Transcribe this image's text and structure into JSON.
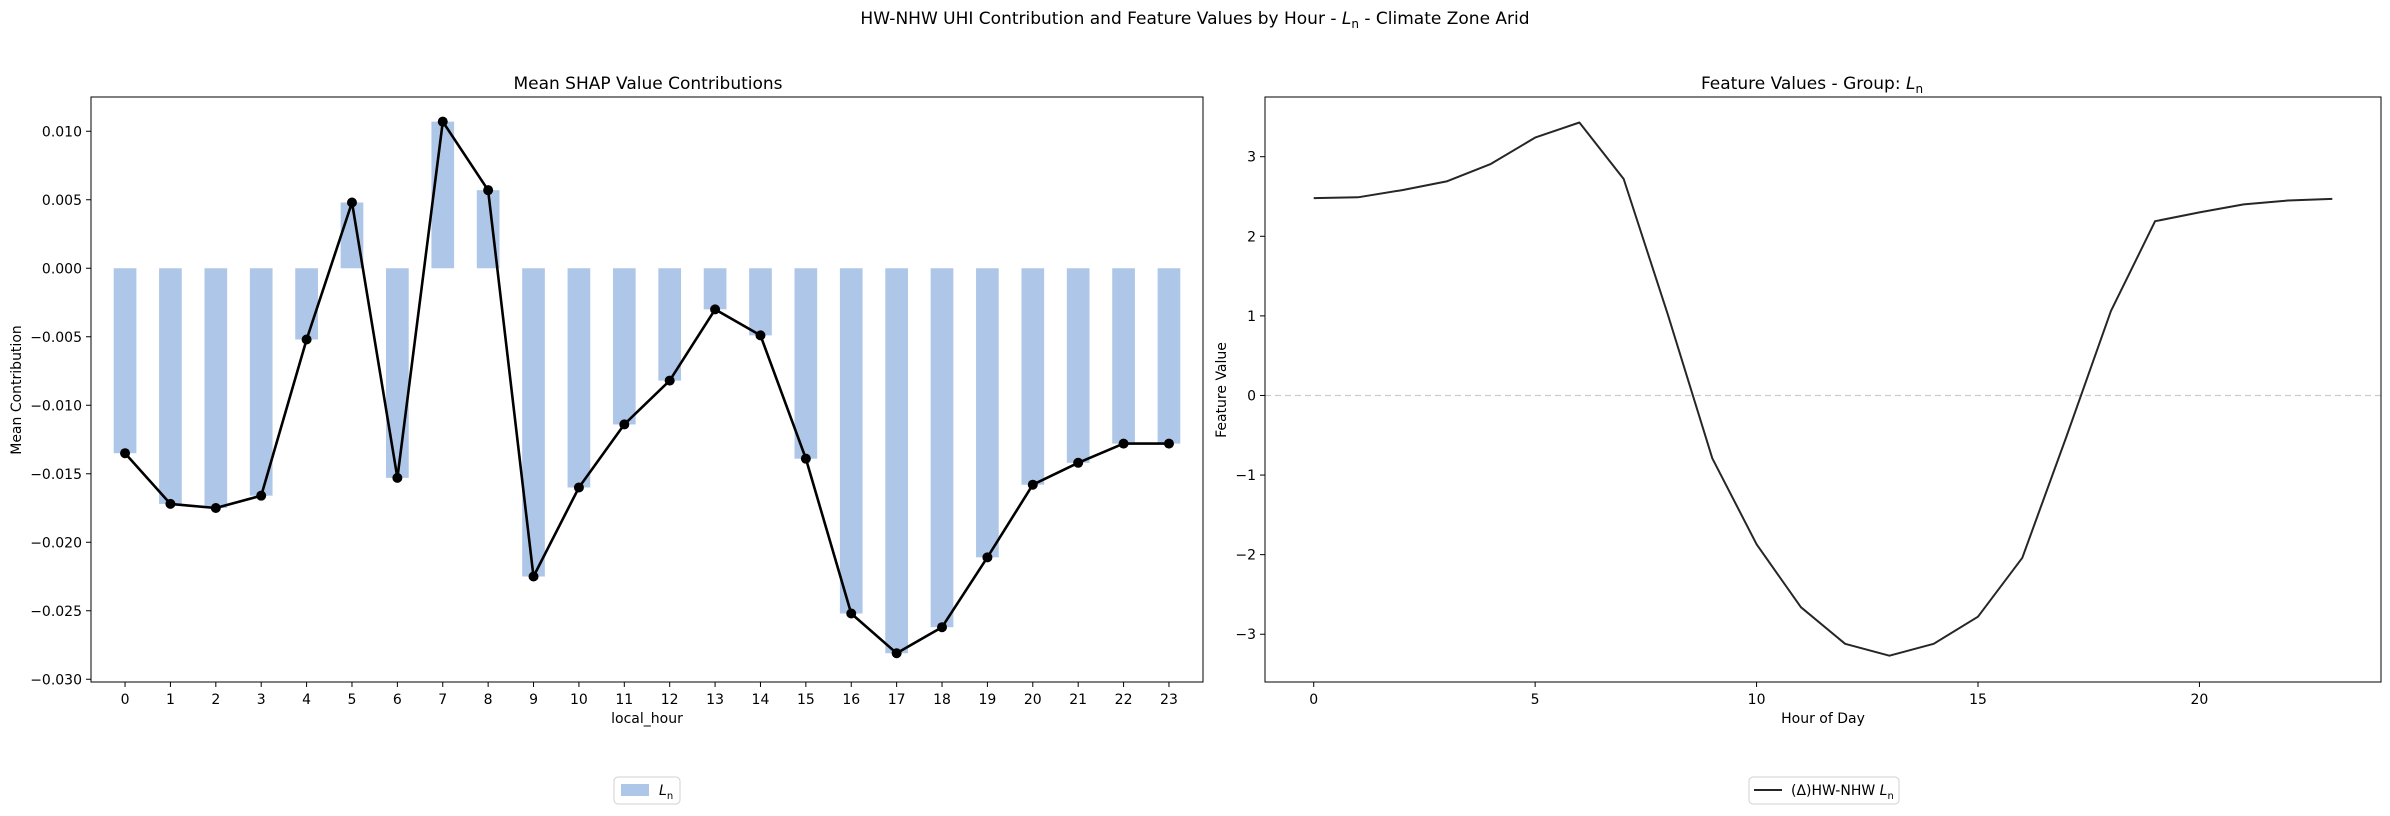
{
  "figure": {
    "suptitle_prefix": "HW-NHW UHI Contribution and Feature Values by Hour - ",
    "suptitle_sym": "L",
    "suptitle_sub": "n",
    "suptitle_suffix": " - Climate Zone Arid"
  },
  "chart_data": [
    {
      "type": "bar",
      "title": "Mean SHAP Value Contributions",
      "xlabel": "local_hour",
      "ylabel": "Mean Contribution",
      "categories": [
        "0",
        "1",
        "2",
        "3",
        "4",
        "5",
        "6",
        "7",
        "8",
        "9",
        "10",
        "11",
        "12",
        "13",
        "14",
        "15",
        "16",
        "17",
        "18",
        "19",
        "20",
        "21",
        "22",
        "23"
      ],
      "series": [
        {
          "name": "L_n",
          "legend_sym": "L",
          "legend_sub": "n",
          "color": "#aec7e8",
          "values": [
            -0.0135,
            -0.0172,
            -0.0175,
            -0.0166,
            -0.0052,
            0.0048,
            -0.0153,
            0.0107,
            0.0057,
            -0.0225,
            -0.016,
            -0.0114,
            -0.0082,
            -0.003,
            -0.0049,
            -0.0139,
            -0.0252,
            -0.0281,
            -0.0262,
            -0.0211,
            -0.0158,
            -0.0142,
            -0.0128,
            -0.0128
          ]
        }
      ],
      "line_overlay": {
        "color": "#000000",
        "markers": true
      },
      "ylim": [
        -0.0302,
        0.0125
      ],
      "yticks": [
        0.01,
        0.005,
        0.0,
        -0.005,
        -0.01,
        -0.015,
        -0.02,
        -0.025,
        -0.03
      ],
      "ytick_labels": [
        "0.010",
        "0.005",
        "0.000",
        "−0.005",
        "−0.010",
        "−0.015",
        "−0.020",
        "−0.025",
        "−0.030"
      ],
      "grid": false,
      "legend_position": "below"
    },
    {
      "type": "line",
      "title_prefix": "Feature Values - Group: ",
      "title_sym": "L",
      "title_sub": "n",
      "xlabel": "Hour of Day",
      "ylabel": "Feature Value",
      "x": [
        0,
        1,
        2,
        3,
        4,
        5,
        6,
        7,
        8,
        9,
        10,
        11,
        12,
        13,
        14,
        15,
        16,
        17,
        18,
        19,
        20,
        21,
        22,
        23
      ],
      "series": [
        {
          "name": "(Δ)HW-NHW L_n",
          "legend_prefix": "(Δ)HW-NHW ",
          "legend_sym": "L",
          "legend_sub": "n",
          "color": "#262626",
          "values": [
            2.48,
            2.49,
            2.58,
            2.69,
            2.91,
            3.24,
            3.43,
            2.72,
            1.01,
            -0.79,
            -1.87,
            -2.66,
            -3.12,
            -3.27,
            -3.12,
            -2.78,
            -2.04,
            -0.51,
            1.06,
            2.19,
            2.3,
            2.4,
            2.45,
            2.47
          ]
        }
      ],
      "xlim": [
        -1.1,
        24.1
      ],
      "ylim": [
        -3.6,
        3.75
      ],
      "xticks": [
        0,
        5,
        10,
        15,
        20
      ],
      "xtick_labels": [
        "0",
        "5",
        "10",
        "15",
        "20"
      ],
      "yticks": [
        3,
        2,
        1,
        0,
        -1,
        -2,
        -3
      ],
      "ytick_labels": [
        "3",
        "2",
        "1",
        "0",
        "−1",
        "−2",
        "−3"
      ],
      "zero_line": {
        "style": "dashed",
        "color": "#cccccc"
      },
      "grid": false,
      "legend_position": "below"
    }
  ]
}
